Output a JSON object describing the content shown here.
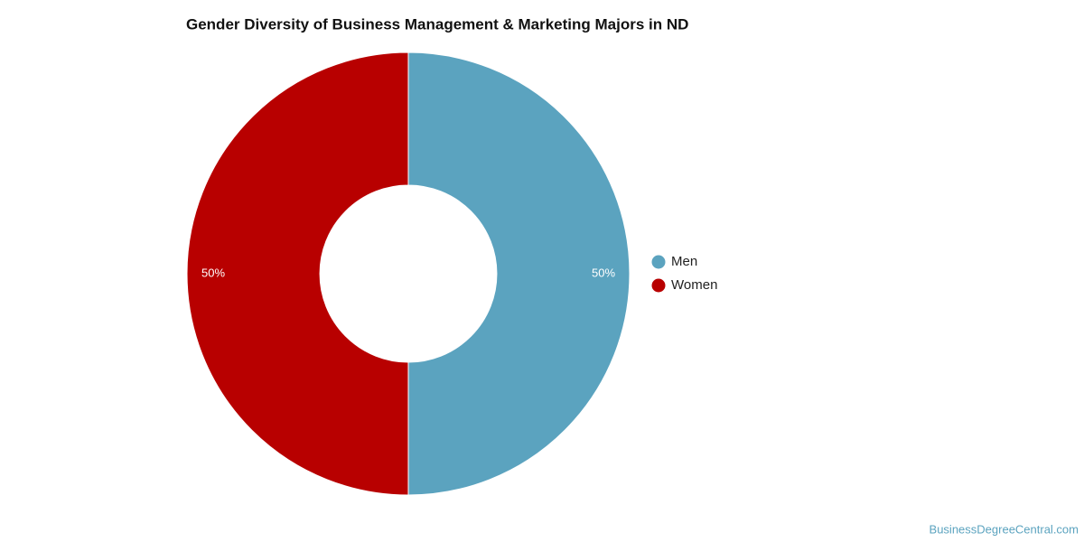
{
  "chart_data": {
    "type": "pie",
    "donut": true,
    "title": "Gender Diversity of Business Management & Marketing Majors in ND",
    "categories": [
      "Men",
      "Women"
    ],
    "values": [
      50,
      50
    ],
    "value_labels": [
      "50%",
      "50%"
    ],
    "colors": [
      "#5ba3bf",
      "#b80000"
    ],
    "legend": "right",
    "source": "BusinessDegreeCentral.com"
  }
}
